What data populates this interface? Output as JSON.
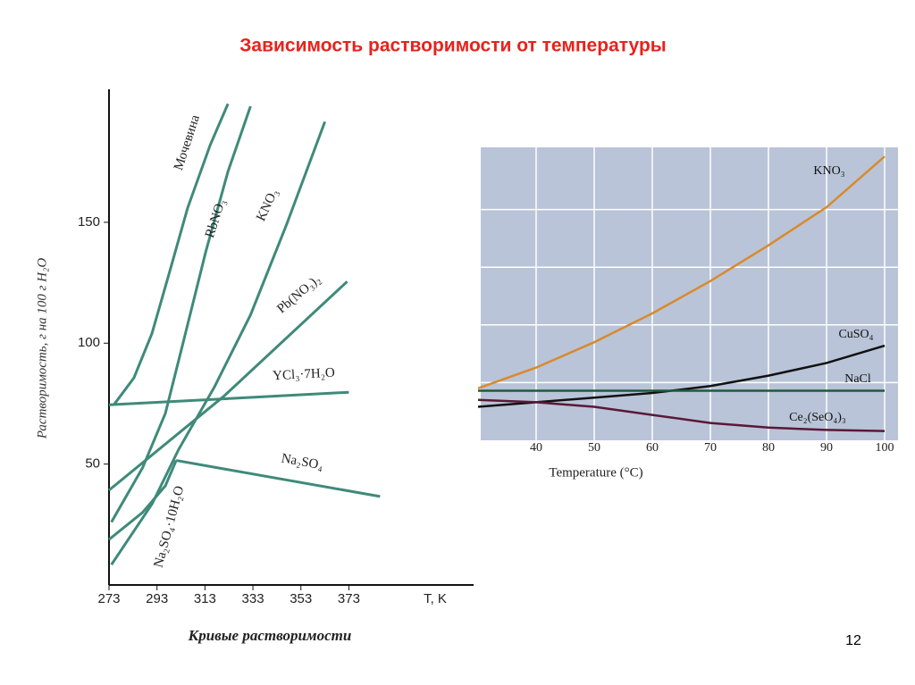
{
  "title": "Зависимость растворимости от температуры",
  "page_number": "12",
  "chart_data": [
    {
      "type": "line",
      "caption": "Кривые растворимости",
      "y_label": "Растворимость, г на 100 г H₂O",
      "x_label": "T, K",
      "xlim": [
        273,
        425
      ],
      "ylim": [
        0,
        205
      ],
      "xticks": [
        273,
        293,
        313,
        333,
        353,
        373
      ],
      "yticks": [
        50,
        100,
        150
      ],
      "color": "#3f8a7a",
      "series": [
        {
          "name": "Мочевина",
          "x": [
            275,
            283.4,
            290.9,
            298.4,
            305.8,
            315.2,
            322.6
          ],
          "values": [
            74.5,
            85.7,
            104,
            130,
            156,
            182,
            199
          ]
        },
        {
          "name": "RbNO₃",
          "x": [
            274,
            287,
            296.5,
            304,
            313.3,
            322.6,
            332
          ],
          "values": [
            26,
            48.5,
            71,
            100.6,
            137.7,
            171,
            198
          ]
        },
        {
          "name": "KNO₃",
          "x": [
            274,
            291,
            302,
            317,
            332,
            347,
            363
          ],
          "values": [
            8.4,
            33.6,
            56,
            82,
            111.7,
            149,
            191.6
          ]
        },
        {
          "name": "Pb(NO₃)₂",
          "x": [
            273,
            320.8,
            372.3
          ],
          "values": [
            39.2,
            78,
            125.5
          ]
        },
        {
          "name": "YCl₃·7H₂O",
          "x": [
            273,
            373
          ],
          "values": [
            74.5,
            79.7
          ]
        },
        {
          "name": "Na₂SO₄·10H₂O",
          "x": [
            273,
            287,
            296.5,
            301
          ],
          "values": [
            18.8,
            30,
            41,
            51.5
          ]
        },
        {
          "name": "Na₂SO₄",
          "x": [
            301,
            386
          ],
          "values": [
            51.5,
            36.6
          ]
        }
      ]
    },
    {
      "type": "line",
      "x_label": "Temperature (°C)",
      "xlim": [
        30,
        100
      ],
      "xticks": [
        40,
        50,
        60,
        70,
        80,
        90,
        100
      ],
      "ylim": [
        0,
        250
      ],
      "ygrid": [
        50,
        100,
        150,
        200
      ],
      "x": [
        30,
        40,
        50,
        60,
        70,
        80,
        90,
        100
      ],
      "series": [
        {
          "name": "KNO₃",
          "color": "#d98a2b",
          "values": [
            45,
            63,
            85,
            110,
            138,
            169,
            202,
            246
          ]
        },
        {
          "name": "CuSO₄",
          "color": "#111111",
          "values": [
            29,
            33,
            37,
            41,
            47,
            56,
            67,
            82
          ]
        },
        {
          "name": "NaCl",
          "color": "#1e5a3a",
          "values": [
            43,
            43,
            43,
            43,
            43,
            43,
            43,
            43
          ]
        },
        {
          "name": "Ce₂(SeO₄)₃",
          "color": "#5a1838",
          "values": [
            35,
            33,
            29,
            22,
            15,
            11,
            9,
            8
          ]
        }
      ]
    }
  ]
}
